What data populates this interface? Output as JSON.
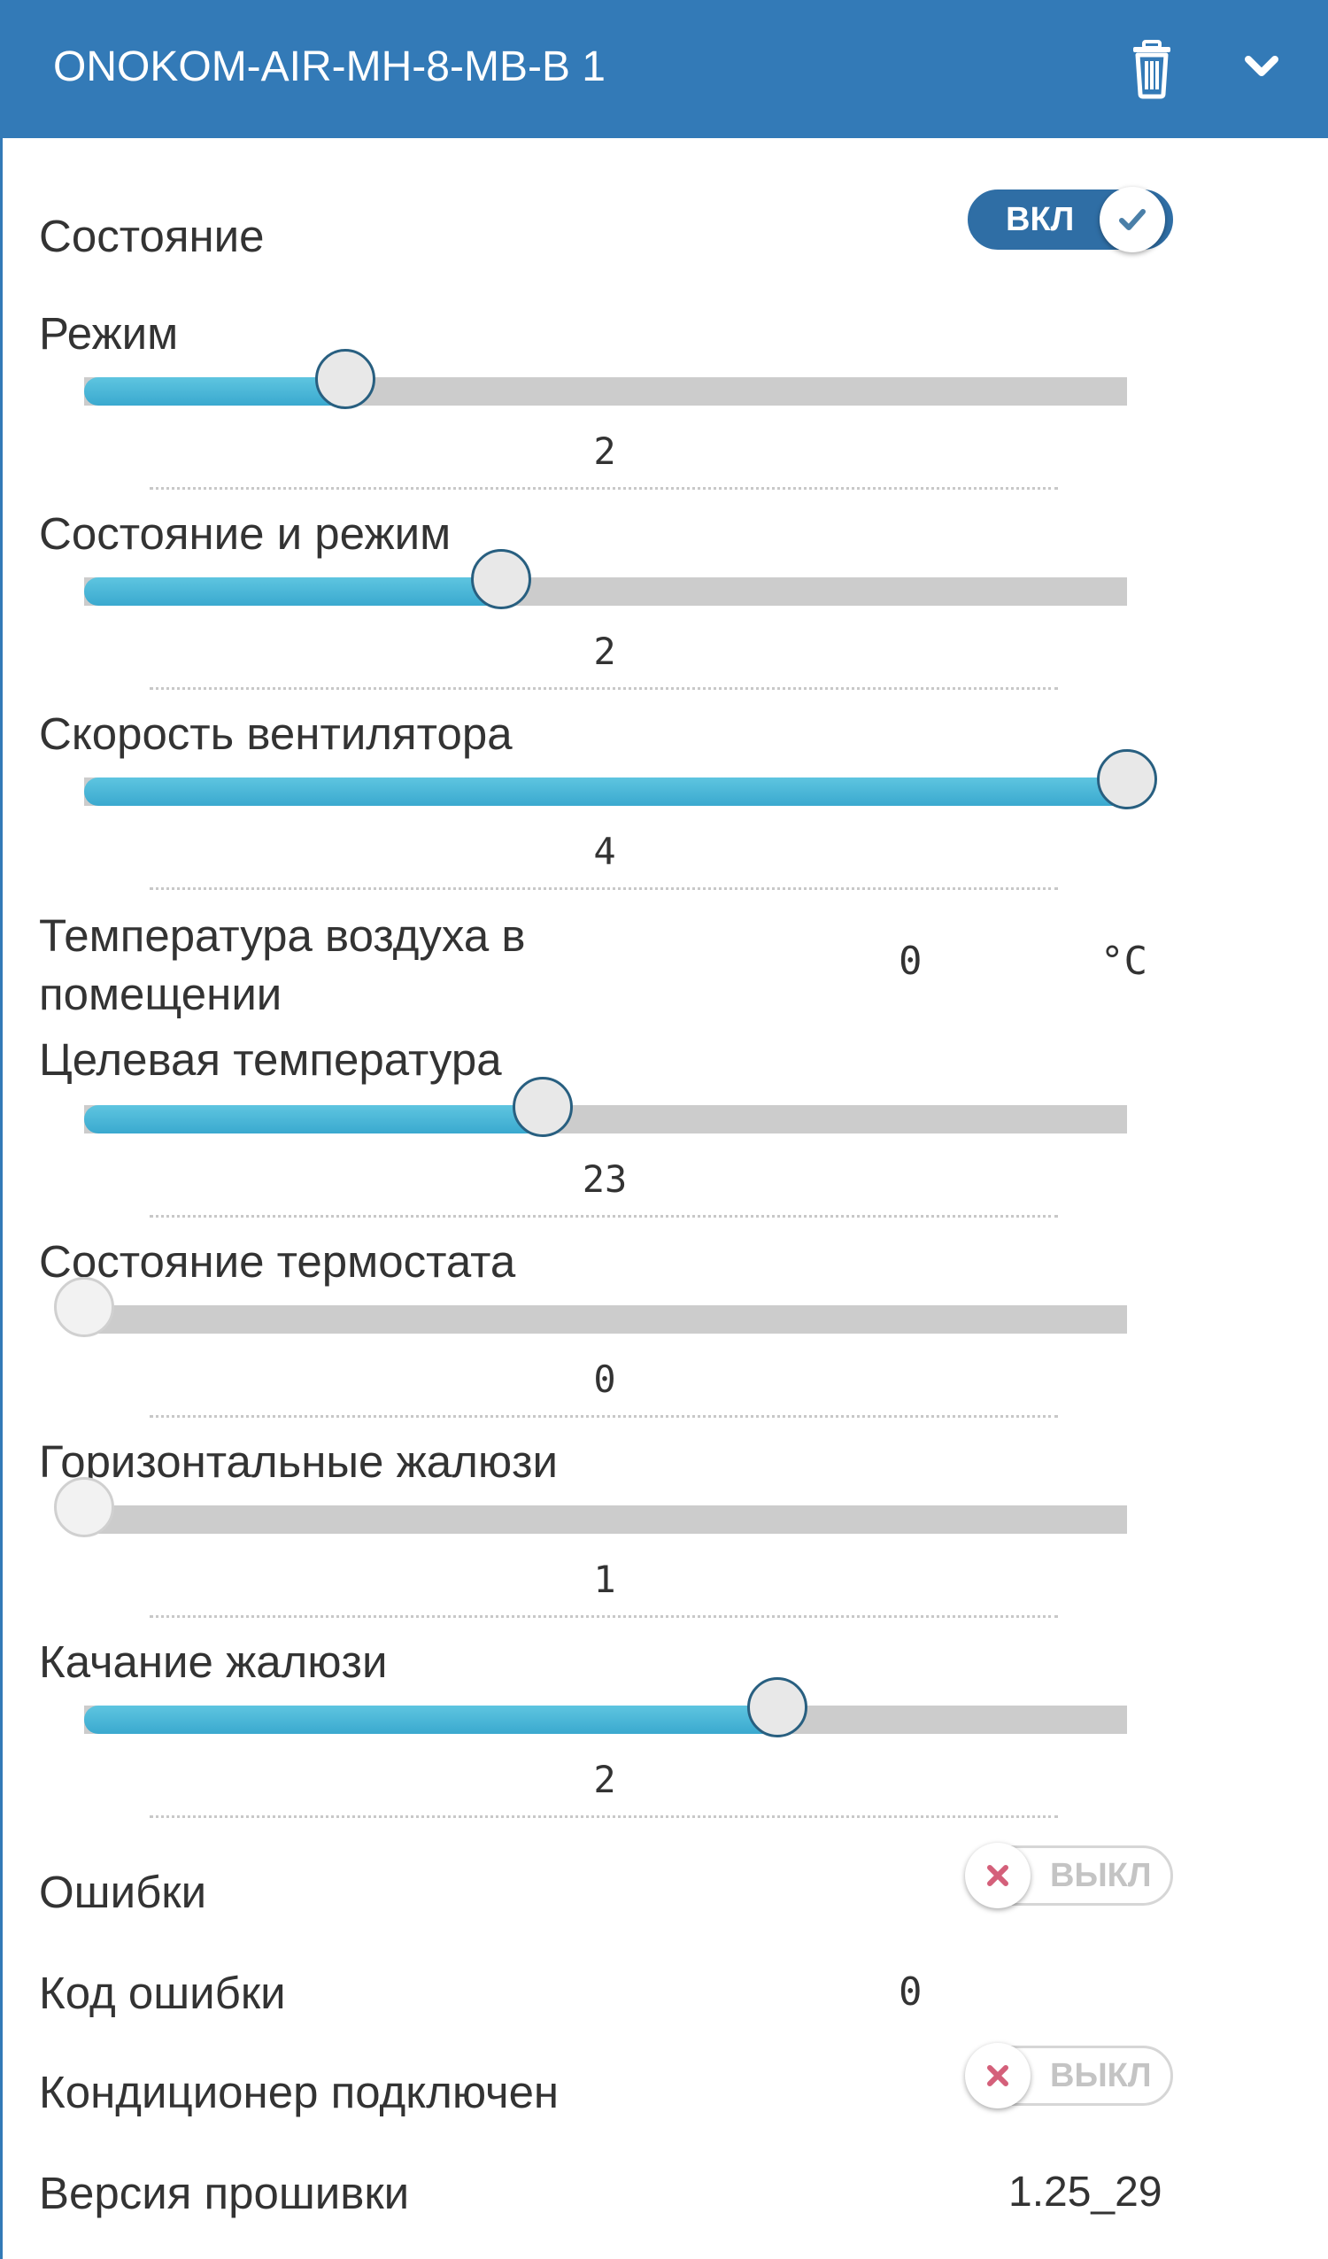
{
  "header": {
    "title": "ONOKOM-AIR-MH-8-MB-B 1",
    "trash_icon": "trash-icon",
    "collapse_icon": "chevron-down-icon",
    "background": "#337ab7"
  },
  "rows": {
    "state": {
      "label": "Состояние",
      "toggle": {
        "label": "ВКЛ",
        "on": true
      }
    },
    "mode": {
      "label": "Режим",
      "slider": {
        "value": "2",
        "fraction": 0.25
      }
    },
    "state_mode": {
      "label": "Состояние и режим",
      "slider": {
        "value": "2",
        "fraction": 0.4
      }
    },
    "fan_speed": {
      "label": "Скорость вентилятора",
      "slider": {
        "value": "4",
        "fraction": 1.0
      }
    },
    "room_temp": {
      "label": "Температура воздуха в помещении",
      "value": "0",
      "unit": "°C"
    },
    "target_temp": {
      "label": "Целевая температура",
      "slider": {
        "value": "23",
        "fraction": 0.44
      }
    },
    "thermostat_state": {
      "label": "Состояние термостата",
      "slider": {
        "value": "0",
        "fraction": 0.0
      }
    },
    "horizontal_louvers": {
      "label": "Горизонтальные жалюзи",
      "slider": {
        "value": "1",
        "fraction": 0.0
      }
    },
    "louver_swing": {
      "label": "Качание жалюзи",
      "slider": {
        "value": "2",
        "fraction": 0.665
      }
    },
    "errors": {
      "label": "Ошибки",
      "toggle": {
        "label": "ВЫКЛ",
        "on": false
      }
    },
    "error_code": {
      "label": "Код ошибки",
      "value": "0"
    },
    "ac_connected": {
      "label": "Кондиционер подключен",
      "toggle": {
        "label": "ВЫКЛ",
        "on": false
      }
    },
    "firmware": {
      "label": "Версия прошивки",
      "value": "1.25_29"
    }
  },
  "colors": {
    "accent": "#337ab7",
    "slider_fill": "#48b4d8",
    "slider_track": "#cccccc",
    "toggle_on": "#2f6ea5",
    "check": "#4a7fa8",
    "cross": "#d4607a"
  }
}
